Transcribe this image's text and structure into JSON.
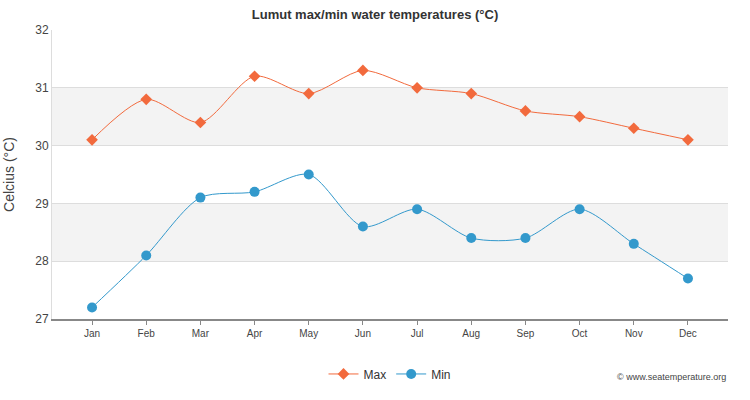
{
  "chart_data": {
    "type": "line",
    "title": "Lumut max/min water temperatures (°C)",
    "y_label": "Celcius (°C)",
    "categories": [
      "Jan",
      "Feb",
      "Mar",
      "Apr",
      "May",
      "Jun",
      "Jul",
      "Aug",
      "Sep",
      "Oct",
      "Nov",
      "Dec"
    ],
    "series": [
      {
        "name": "Max",
        "color": "#f26a3d",
        "marker": "diamond",
        "values": [
          30.1,
          30.8,
          30.4,
          31.2,
          30.9,
          31.3,
          31.0,
          30.9,
          30.6,
          30.5,
          30.3,
          30.1
        ]
      },
      {
        "name": "Min",
        "color": "#3399cc",
        "marker": "circle",
        "values": [
          27.2,
          28.1,
          29.1,
          29.2,
          29.5,
          28.6,
          28.9,
          28.4,
          28.4,
          28.9,
          28.3,
          27.7
        ]
      }
    ],
    "ylim": [
      27,
      32
    ],
    "yticks": [
      27,
      28,
      29,
      30,
      31,
      32
    ],
    "grid": true,
    "legend": "bottom",
    "annotations": [
      "© www.seatemperature.org"
    ]
  }
}
